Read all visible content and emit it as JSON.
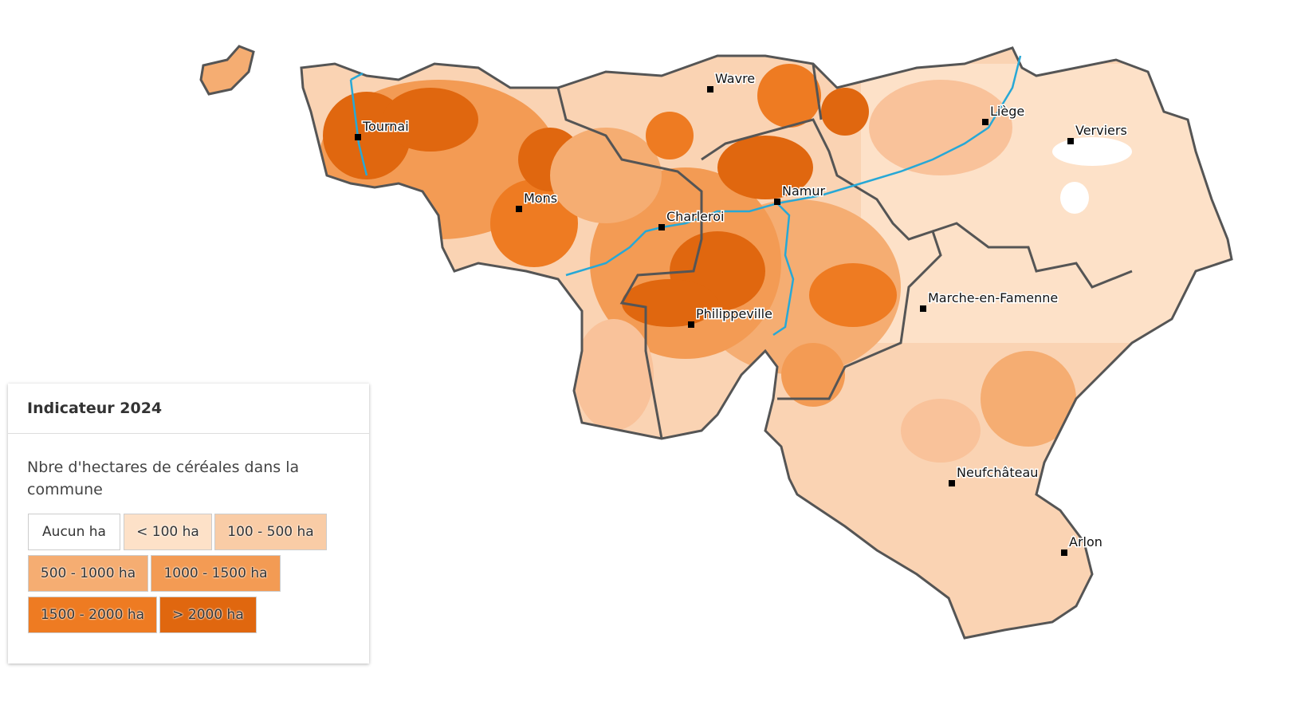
{
  "legend": {
    "title": "Indicateur 2024",
    "subtitle": "Nbre d'hectares de céréales dans la commune",
    "items": [
      {
        "label": "Aucun ha",
        "color": "#ffffff"
      },
      {
        "label": "< 100 ha",
        "color": "#fde1c8"
      },
      {
        "label": "100 - 500 ha",
        "color": "#f9cca6"
      },
      {
        "label": "500 - 1000 ha",
        "color": "#f5ad72"
      },
      {
        "label": "1000 - 1500 ha",
        "color": "#f39b54"
      },
      {
        "label": "1500 - 2000 ha",
        "color": "#ee7b22"
      },
      {
        "label": "> 2000 ha",
        "color": "#e0670f"
      }
    ]
  },
  "cities": [
    "Tournai",
    "Wavre",
    "Liège",
    "Verviers",
    "Mons",
    "Charleroi",
    "Namur",
    "Marche-en-Famenne",
    "Philippeville",
    "Neufchâteau",
    "Arlon"
  ]
}
